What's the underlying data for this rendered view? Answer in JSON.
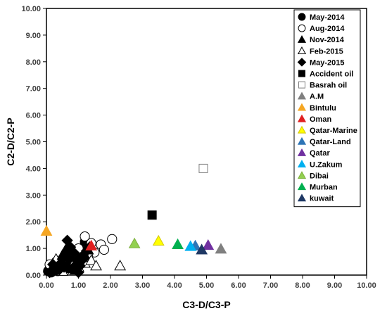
{
  "chart_data": {
    "type": "scatter",
    "xlabel": "C3-D/C3-P",
    "ylabel": "C2-D/C2-P",
    "xlim": [
      0,
      10
    ],
    "ylim": [
      0,
      10
    ],
    "xticks": [
      "0.00",
      "1.00",
      "2.00",
      "3.00",
      "4.00",
      "5.00",
      "6.00",
      "7.00",
      "8.00",
      "9.00",
      "10.00"
    ],
    "yticks": [
      "0.00",
      "1.00",
      "2.00",
      "3.00",
      "4.00",
      "5.00",
      "6.00",
      "7.00",
      "8.00",
      "9.00",
      "10.00"
    ],
    "grid": false,
    "legend_position": "top-right-inside",
    "series": [
      {
        "name": "May-2014",
        "marker": "circle",
        "fill": "#000000",
        "stroke": "#000000",
        "points": [
          [
            0.05,
            0.15
          ],
          [
            0.1,
            0.2
          ],
          [
            0.15,
            0.1
          ],
          [
            0.2,
            0.25
          ],
          [
            0.3,
            0.3
          ],
          [
            0.4,
            0.35
          ],
          [
            0.5,
            0.4
          ],
          [
            0.6,
            0.5
          ],
          [
            0.7,
            0.55
          ],
          [
            0.8,
            0.6
          ],
          [
            0.9,
            0.7
          ],
          [
            1.0,
            0.8
          ],
          [
            1.1,
            0.9
          ],
          [
            1.2,
            1.25
          ],
          [
            0.35,
            0.15
          ],
          [
            0.55,
            0.25
          ],
          [
            0.75,
            0.45
          ],
          [
            0.95,
            0.5
          ]
        ]
      },
      {
        "name": "Aug-2014",
        "marker": "circle",
        "fill": "#ffffff",
        "stroke": "#000000",
        "points": [
          [
            0.1,
            0.4
          ],
          [
            0.3,
            0.5
          ],
          [
            0.5,
            0.6
          ],
          [
            0.7,
            0.7
          ],
          [
            0.9,
            0.8
          ],
          [
            1.0,
            1.0
          ],
          [
            1.2,
            1.45
          ],
          [
            1.4,
            1.2
          ],
          [
            1.5,
            0.85
          ],
          [
            1.7,
            1.15
          ],
          [
            1.8,
            0.95
          ],
          [
            2.05,
            1.35
          ],
          [
            1.3,
            0.7
          ],
          [
            1.1,
            0.55
          ],
          [
            0.8,
            0.3
          ],
          [
            0.6,
            0.2
          ]
        ]
      },
      {
        "name": "Nov-2014",
        "marker": "triangle",
        "fill": "#000000",
        "stroke": "#000000",
        "points": [
          [
            0.2,
            0.3
          ],
          [
            0.4,
            0.45
          ],
          [
            0.5,
            0.75
          ],
          [
            0.6,
            0.95
          ],
          [
            0.8,
            0.55
          ],
          [
            1.0,
            0.65
          ],
          [
            1.1,
            0.5
          ],
          [
            1.2,
            0.75
          ],
          [
            1.3,
            0.95
          ],
          [
            0.7,
            0.25
          ],
          [
            0.9,
            0.2
          ]
        ]
      },
      {
        "name": "Feb-2015",
        "marker": "triangle",
        "fill": "#ffffff",
        "stroke": "#000000",
        "points": [
          [
            0.3,
            0.6
          ],
          [
            0.6,
            0.65
          ],
          [
            0.9,
            0.55
          ],
          [
            1.2,
            0.45
          ],
          [
            1.4,
            0.55
          ],
          [
            1.55,
            0.35
          ],
          [
            2.3,
            0.35
          ],
          [
            1.0,
            0.3
          ],
          [
            0.5,
            0.15
          ]
        ]
      },
      {
        "name": "May-2015",
        "marker": "diamond",
        "fill": "#000000",
        "stroke": "#000000",
        "points": [
          [
            0.1,
            0.1
          ],
          [
            0.3,
            0.2
          ],
          [
            0.45,
            0.45
          ],
          [
            0.55,
            0.3
          ],
          [
            0.65,
            1.3
          ],
          [
            0.75,
            1.05
          ],
          [
            0.85,
            0.85
          ],
          [
            0.95,
            0.55
          ],
          [
            1.05,
            0.35
          ],
          [
            1.0,
            0.1
          ],
          [
            1.15,
            0.6
          ],
          [
            1.25,
            0.9
          ],
          [
            1.35,
            1.05
          ],
          [
            0.6,
            0.8
          ],
          [
            0.7,
            0.6
          ],
          [
            0.85,
            0.3
          ],
          [
            0.5,
            0.6
          ],
          [
            0.4,
            0.2
          ],
          [
            0.2,
            0.4
          ]
        ]
      },
      {
        "name": "Accident oil",
        "marker": "square",
        "fill": "#000000",
        "stroke": "#000000",
        "points": [
          [
            3.3,
            2.25
          ]
        ]
      },
      {
        "name": "Basrah oil",
        "marker": "square",
        "fill": "#ffffff",
        "stroke": "#808080",
        "points": [
          [
            4.9,
            4.0
          ]
        ]
      },
      {
        "name": "A.M",
        "marker": "triangle",
        "fill": "#808080",
        "stroke": "#808080",
        "points": [
          [
            5.45,
            0.98
          ]
        ]
      },
      {
        "name": "Bintulu",
        "marker": "triangle",
        "fill": "#f5a623",
        "stroke": "#f5a623",
        "points": [
          [
            0.0,
            1.65
          ]
        ]
      },
      {
        "name": "Oman",
        "marker": "triangle",
        "fill": "#e02020",
        "stroke": "#e02020",
        "points": [
          [
            1.4,
            1.1
          ]
        ]
      },
      {
        "name": "Qatar-Marine",
        "marker": "triangle",
        "fill": "#ffff00",
        "stroke": "#d4c800",
        "points": [
          [
            3.5,
            1.28
          ]
        ]
      },
      {
        "name": "Qatar-Land",
        "marker": "triangle",
        "fill": "#2e75b6",
        "stroke": "#2e75b6",
        "points": [
          [
            4.65,
            1.1
          ]
        ]
      },
      {
        "name": "Qatar",
        "marker": "triangle",
        "fill": "#7030a0",
        "stroke": "#7030a0",
        "points": [
          [
            5.05,
            1.12
          ]
        ]
      },
      {
        "name": "U.Zakum",
        "marker": "triangle",
        "fill": "#00b0f0",
        "stroke": "#00b0f0",
        "points": [
          [
            4.5,
            1.08
          ]
        ]
      },
      {
        "name": "Dibai",
        "marker": "triangle",
        "fill": "#92d050",
        "stroke": "#7fb03f",
        "points": [
          [
            2.75,
            1.18
          ]
        ]
      },
      {
        "name": "Murban",
        "marker": "triangle",
        "fill": "#00b050",
        "stroke": "#00b050",
        "points": [
          [
            4.1,
            1.15
          ]
        ]
      },
      {
        "name": "kuwait",
        "marker": "triangle",
        "fill": "#1f3864",
        "stroke": "#1f3864",
        "points": [
          [
            4.85,
            0.95
          ]
        ]
      }
    ]
  }
}
